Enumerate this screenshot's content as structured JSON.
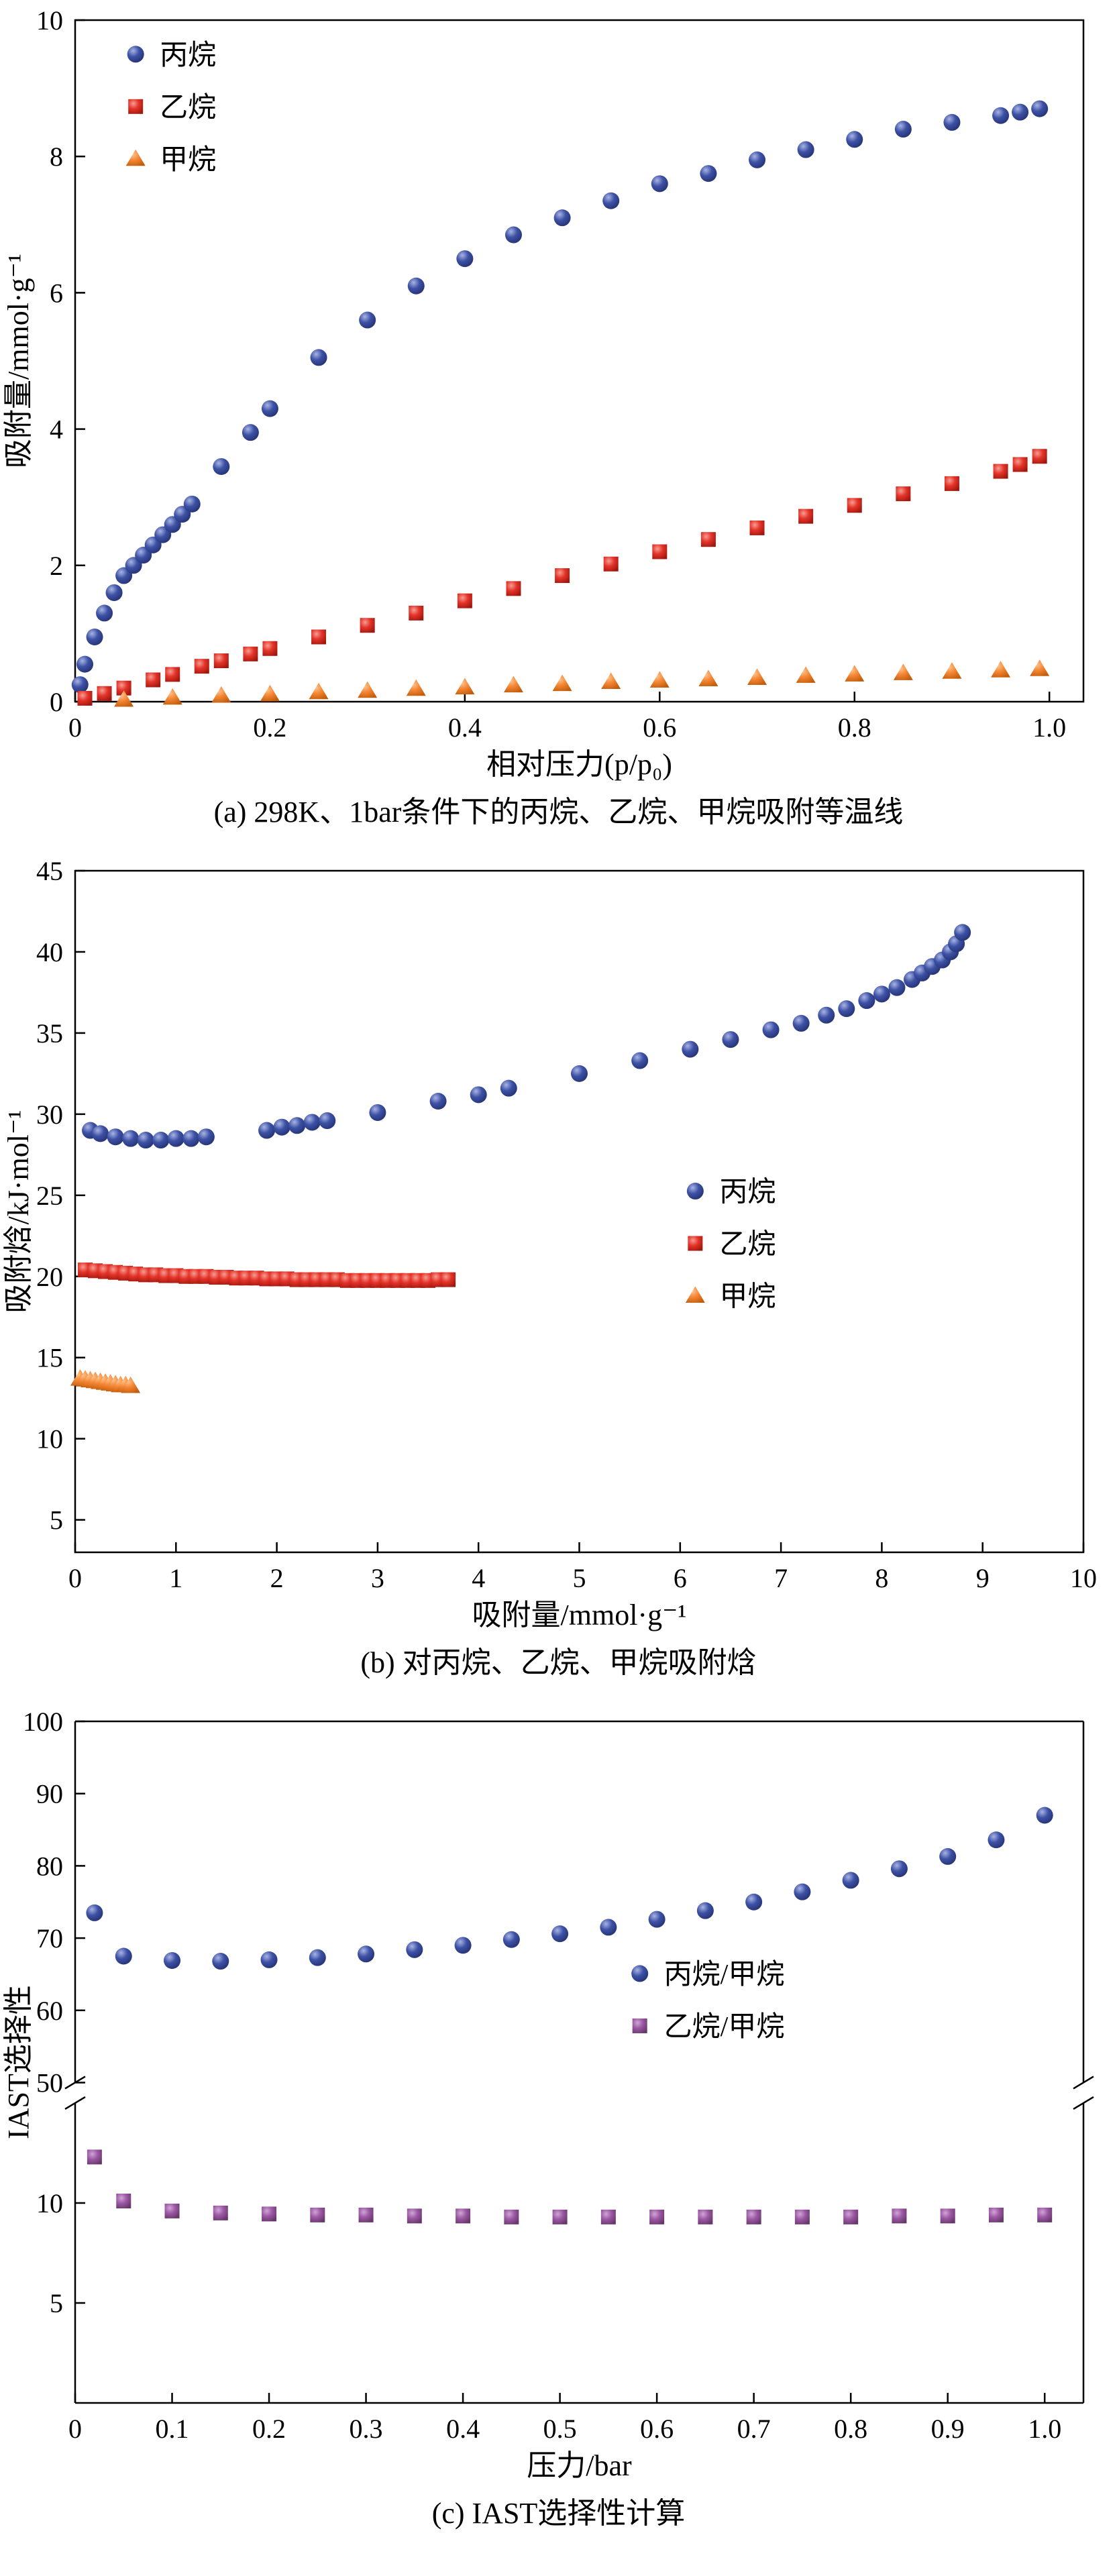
{
  "figure": {
    "background": "#ffffff"
  },
  "chart_data": [
    {
      "id": "a",
      "type": "scatter",
      "caption": "(a) 298K、1bar条件下的丙烷、乙烷、甲烷吸附等温线",
      "xlabel": "相对压力(p/p₀)",
      "ylabel": "吸附量/mmol·g⁻¹",
      "xlim": [
        0,
        1.035
      ],
      "ylim": [
        0,
        10
      ],
      "grid": false,
      "legend": {
        "x": 0.06,
        "y": 0.05,
        "spacing": 78
      },
      "xticks": [
        {
          "v": 0,
          "label": "0"
        },
        {
          "v": 0.2,
          "label": "0.2"
        },
        {
          "v": 0.4,
          "label": "0.4"
        },
        {
          "v": 0.6,
          "label": "0.6"
        },
        {
          "v": 0.8,
          "label": "0.8"
        },
        {
          "v": 1.0,
          "label": "1.0"
        }
      ],
      "yticks": [
        {
          "v": 0,
          "label": "0"
        },
        {
          "v": 2,
          "label": "2"
        },
        {
          "v": 4,
          "label": "4"
        },
        {
          "v": 6,
          "label": "6"
        },
        {
          "v": 8,
          "label": "8"
        },
        {
          "v": 10,
          "label": "10"
        }
      ],
      "series": [
        {
          "key": "propane",
          "name": "丙烷",
          "marker": "circle",
          "color": "#3d51a5",
          "color_light": "#a8b4e4",
          "color_dark": "#222f6e",
          "x": [
            0.005,
            0.01,
            0.02,
            0.03,
            0.04,
            0.05,
            0.06,
            0.07,
            0.08,
            0.09,
            0.1,
            0.11,
            0.12,
            0.15,
            0.18,
            0.2,
            0.25,
            0.3,
            0.35,
            0.4,
            0.45,
            0.5,
            0.55,
            0.6,
            0.65,
            0.7,
            0.75,
            0.8,
            0.85,
            0.9,
            0.95,
            0.97,
            0.99
          ],
          "y": [
            0.25,
            0.55,
            0.95,
            1.3,
            1.6,
            1.85,
            2.0,
            2.15,
            2.3,
            2.45,
            2.6,
            2.75,
            2.9,
            3.45,
            3.95,
            4.3,
            5.05,
            5.6,
            6.1,
            6.5,
            6.85,
            7.1,
            7.35,
            7.6,
            7.75,
            7.95,
            8.1,
            8.25,
            8.4,
            8.5,
            8.6,
            8.65,
            8.7
          ]
        },
        {
          "key": "ethane",
          "name": "乙烷",
          "marker": "square",
          "color": "#e5342a",
          "color_light": "#f59d92",
          "color_dark": "#9e170d",
          "x": [
            0.01,
            0.03,
            0.05,
            0.08,
            0.1,
            0.13,
            0.15,
            0.18,
            0.2,
            0.25,
            0.3,
            0.35,
            0.4,
            0.45,
            0.5,
            0.55,
            0.6,
            0.65,
            0.7,
            0.75,
            0.8,
            0.85,
            0.9,
            0.95,
            0.97,
            0.99
          ],
          "y": [
            0.05,
            0.12,
            0.2,
            0.32,
            0.4,
            0.52,
            0.6,
            0.7,
            0.78,
            0.95,
            1.12,
            1.3,
            1.48,
            1.66,
            1.85,
            2.02,
            2.2,
            2.38,
            2.55,
            2.72,
            2.88,
            3.05,
            3.2,
            3.38,
            3.48,
            3.6
          ]
        },
        {
          "key": "methane",
          "name": "甲烷",
          "marker": "triangle",
          "color": "#f58634",
          "color_light": "#fcc690",
          "color_dark": "#c05c0a",
          "x": [
            0.05,
            0.1,
            0.15,
            0.2,
            0.25,
            0.3,
            0.35,
            0.4,
            0.45,
            0.5,
            0.55,
            0.6,
            0.65,
            0.7,
            0.75,
            0.8,
            0.85,
            0.9,
            0.95,
            0.99
          ],
          "y": [
            0.03,
            0.06,
            0.09,
            0.11,
            0.14,
            0.16,
            0.19,
            0.21,
            0.24,
            0.26,
            0.29,
            0.31,
            0.33,
            0.35,
            0.38,
            0.4,
            0.42,
            0.44,
            0.46,
            0.48
          ]
        }
      ]
    },
    {
      "id": "b",
      "type": "scatter",
      "caption": "(b) 对丙烷、乙烷、甲烷吸附焓",
      "xlabel": "吸附量/mmol·g⁻¹",
      "ylabel": "吸附焓/kJ·mol⁻¹",
      "xlim": [
        0,
        10
      ],
      "ylim": [
        3,
        45
      ],
      "grid": false,
      "legend": {
        "x": 0.615,
        "y": 0.47,
        "spacing": 78
      },
      "xticks": [
        {
          "v": 0,
          "label": "0"
        },
        {
          "v": 1,
          "label": "1"
        },
        {
          "v": 2,
          "label": "2"
        },
        {
          "v": 3,
          "label": "3"
        },
        {
          "v": 4,
          "label": "4"
        },
        {
          "v": 5,
          "label": "5"
        },
        {
          "v": 6,
          "label": "6"
        },
        {
          "v": 7,
          "label": "7"
        },
        {
          "v": 8,
          "label": "8"
        },
        {
          "v": 9,
          "label": "9"
        },
        {
          "v": 10,
          "label": "10"
        }
      ],
      "yticks": [
        {
          "v": 5,
          "label": "5"
        },
        {
          "v": 10,
          "label": "10"
        },
        {
          "v": 15,
          "label": "15"
        },
        {
          "v": 20,
          "label": "20"
        },
        {
          "v": 25,
          "label": "25"
        },
        {
          "v": 30,
          "label": "30"
        },
        {
          "v": 35,
          "label": "35"
        },
        {
          "v": 40,
          "label": "40"
        },
        {
          "v": 45,
          "label": "45"
        }
      ],
      "series": [
        {
          "key": "propane",
          "name": "丙烷",
          "marker": "circle",
          "color": "#3d51a5",
          "color_light": "#a8b4e4",
          "color_dark": "#222f6e",
          "x": [
            0.15,
            0.25,
            0.4,
            0.55,
            0.7,
            0.85,
            1.0,
            1.15,
            1.3,
            1.9,
            2.05,
            2.2,
            2.35,
            2.5,
            3.0,
            3.6,
            4.0,
            4.3,
            5.0,
            5.6,
            6.1,
            6.5,
            6.9,
            7.2,
            7.45,
            7.65,
            7.85,
            8.0,
            8.15,
            8.3,
            8.4,
            8.5,
            8.6,
            8.68,
            8.74,
            8.8
          ],
          "y": [
            29.0,
            28.8,
            28.6,
            28.5,
            28.4,
            28.4,
            28.5,
            28.5,
            28.6,
            29.0,
            29.2,
            29.3,
            29.5,
            29.6,
            30.1,
            30.8,
            31.2,
            31.6,
            32.5,
            33.3,
            34.0,
            34.6,
            35.2,
            35.6,
            36.1,
            36.5,
            37.0,
            37.4,
            37.8,
            38.3,
            38.7,
            39.1,
            39.5,
            40.0,
            40.5,
            41.2
          ]
        },
        {
          "key": "ethane",
          "name": "乙烷",
          "marker": "square",
          "color": "#e5342a",
          "color_light": "#f59d92",
          "color_dark": "#9e170d",
          "x": [
            0.1,
            0.2,
            0.3,
            0.4,
            0.5,
            0.6,
            0.7,
            0.8,
            0.9,
            1.0,
            1.1,
            1.2,
            1.3,
            1.4,
            1.5,
            1.6,
            1.7,
            1.8,
            1.9,
            2.0,
            2.1,
            2.2,
            2.3,
            2.4,
            2.5,
            2.6,
            2.7,
            2.8,
            2.9,
            3.0,
            3.1,
            3.2,
            3.3,
            3.4,
            3.5,
            3.6,
            3.7
          ],
          "y": [
            20.4,
            20.35,
            20.3,
            20.25,
            20.2,
            20.15,
            20.1,
            20.1,
            20.05,
            20.05,
            20.0,
            20.0,
            20.0,
            19.95,
            19.95,
            19.9,
            19.9,
            19.9,
            19.85,
            19.85,
            19.85,
            19.8,
            19.8,
            19.8,
            19.8,
            19.8,
            19.75,
            19.75,
            19.75,
            19.75,
            19.75,
            19.75,
            19.75,
            19.75,
            19.75,
            19.8,
            19.8
          ]
        },
        {
          "key": "methane",
          "name": "甲烷",
          "marker": "triangle",
          "color": "#f58634",
          "color_light": "#fcc690",
          "color_dark": "#c05c0a",
          "x": [
            0.05,
            0.1,
            0.15,
            0.2,
            0.25,
            0.3,
            0.35,
            0.4,
            0.45,
            0.5,
            0.55
          ],
          "y": [
            13.7,
            13.65,
            13.6,
            13.55,
            13.5,
            13.45,
            13.4,
            13.35,
            13.3,
            13.3,
            13.25
          ]
        }
      ]
    },
    {
      "id": "c",
      "type": "scatter",
      "caption": "(c) IAST选择性计算",
      "xlabel": "压力/bar",
      "ylabel": "IAST选择性",
      "xlim": [
        0,
        1.04
      ],
      "grid": false,
      "ybreak": {
        "segments": [
          {
            "range": [
              0,
              15
            ],
            "frac": [
              0,
              0.44
            ],
            "ticks": [
              {
                "v": 5,
                "label": "5"
              },
              {
                "v": 10,
                "label": "10"
              }
            ]
          },
          {
            "range": [
              50,
              100
            ],
            "frac": [
              0.47,
              1.0
            ],
            "ticks": [
              {
                "v": 50,
                "label": "50"
              },
              {
                "v": 60,
                "label": "60"
              },
              {
                "v": 70,
                "label": "70"
              },
              {
                "v": 80,
                "label": "80"
              },
              {
                "v": 90,
                "label": "90"
              },
              {
                "v": 100,
                "label": "100"
              }
            ]
          }
        ]
      },
      "legend": {
        "x": 0.56,
        "y": 0.37,
        "spacing": 78
      },
      "xticks": [
        {
          "v": 0,
          "label": "0"
        },
        {
          "v": 0.1,
          "label": "0.1"
        },
        {
          "v": 0.2,
          "label": "0.2"
        },
        {
          "v": 0.3,
          "label": "0.3"
        },
        {
          "v": 0.4,
          "label": "0.4"
        },
        {
          "v": 0.5,
          "label": "0.5"
        },
        {
          "v": 0.6,
          "label": "0.6"
        },
        {
          "v": 0.7,
          "label": "0.7"
        },
        {
          "v": 0.8,
          "label": "0.8"
        },
        {
          "v": 0.9,
          "label": "0.9"
        },
        {
          "v": 1.0,
          "label": "1.0"
        }
      ],
      "series": [
        {
          "key": "propane-methane",
          "name": "丙烷/甲烷",
          "marker": "circle",
          "color": "#3d51a5",
          "color_light": "#a8b4e4",
          "color_dark": "#222f6e",
          "x": [
            0.02,
            0.05,
            0.1,
            0.15,
            0.2,
            0.25,
            0.3,
            0.35,
            0.4,
            0.45,
            0.5,
            0.55,
            0.6,
            0.65,
            0.7,
            0.75,
            0.8,
            0.85,
            0.9,
            0.95,
            1.0
          ],
          "y": [
            73.5,
            67.5,
            66.9,
            66.8,
            67.0,
            67.3,
            67.8,
            68.4,
            69.0,
            69.8,
            70.6,
            71.5,
            72.6,
            73.8,
            75.0,
            76.4,
            78.0,
            79.6,
            81.3,
            83.6,
            87.0
          ]
        },
        {
          "key": "ethane-methane",
          "name": "乙烷/甲烷",
          "marker": "square",
          "color": "#9d59a5",
          "color_light": "#cfa6d4",
          "color_dark": "#653668",
          "x": [
            0.02,
            0.05,
            0.1,
            0.15,
            0.2,
            0.25,
            0.3,
            0.35,
            0.4,
            0.45,
            0.5,
            0.55,
            0.6,
            0.65,
            0.7,
            0.75,
            0.8,
            0.85,
            0.9,
            0.95,
            1.0
          ],
          "y": [
            12.3,
            10.1,
            9.6,
            9.5,
            9.45,
            9.4,
            9.4,
            9.35,
            9.35,
            9.3,
            9.3,
            9.3,
            9.3,
            9.3,
            9.3,
            9.3,
            9.3,
            9.35,
            9.35,
            9.4,
            9.4
          ]
        }
      ]
    }
  ]
}
